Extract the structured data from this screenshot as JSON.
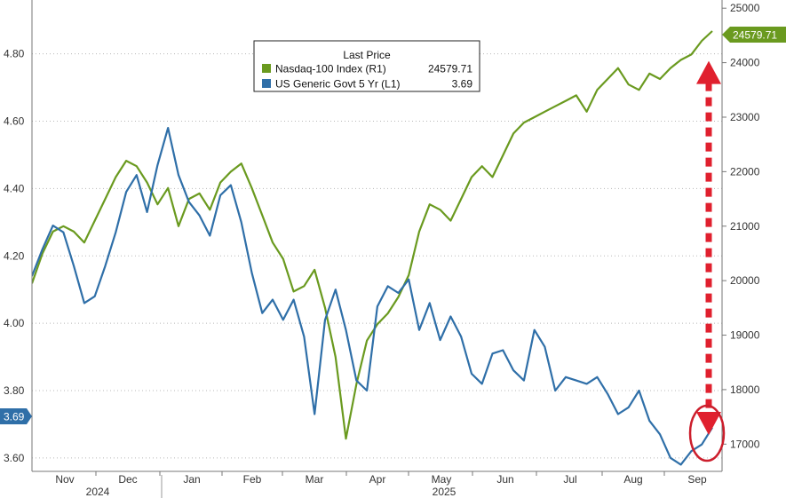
{
  "chart_data": {
    "type": "line",
    "legend": {
      "title": "Last Price",
      "placement": "top-center",
      "entries": [
        {
          "label": "Nasdaq-100 Index  (R1)",
          "value": "24579.71",
          "color": "#6a9a1f"
        },
        {
          "label": "US Generic Govt 5 Yr  (L1)",
          "value": "3.69",
          "color": "#2f6fa8"
        }
      ]
    },
    "x_ticks": [
      "Nov",
      "Dec",
      "Jan",
      "Feb",
      "Mar",
      "Apr",
      "May",
      "Jun",
      "Jul",
      "Aug",
      "Sep"
    ],
    "year_labels": [
      "2024",
      "2025"
    ],
    "left_axis": {
      "ticks": [
        "4.80",
        "4.60",
        "4.40",
        "4.20",
        "4.00",
        "3.80",
        "3.60"
      ],
      "range": [
        3.56,
        4.96
      ]
    },
    "right_axis": {
      "ticks": [
        "25000",
        "24000",
        "23000",
        "22000",
        "21000",
        "20000",
        "19000",
        "18000",
        "17000"
      ],
      "range": [
        16500,
        25150
      ]
    },
    "last_value_tags": {
      "left": "3.69",
      "right": "24579.71"
    },
    "series": [
      {
        "name": "Nasdaq-100 Index",
        "axis": "right",
        "color": "#6a9a1f",
        "x": [
          0,
          5,
          10,
          15,
          20,
          25,
          30,
          35,
          40,
          45,
          50,
          55,
          60,
          65,
          70,
          75,
          80,
          85,
          90,
          95,
          100,
          105,
          110,
          115,
          120,
          125,
          130,
          135,
          140,
          145,
          150,
          155,
          160,
          165,
          170,
          175,
          180,
          185,
          190,
          195,
          200,
          205,
          210,
          215,
          220,
          225,
          230,
          235,
          240,
          245,
          250,
          255,
          260,
          265,
          270,
          275,
          280,
          285,
          290,
          295,
          300,
          305,
          310,
          315,
          320,
          325
        ],
        "values": [
          19950,
          20500,
          20900,
          21000,
          20900,
          20700,
          21100,
          21500,
          21900,
          22200,
          22100,
          21800,
          21400,
          21700,
          21000,
          21500,
          21600,
          21300,
          21800,
          22000,
          22150,
          21700,
          21200,
          20700,
          20400,
          19800,
          19900,
          20200,
          19500,
          18600,
          17100,
          18100,
          18900,
          19200,
          19400,
          19700,
          20100,
          20900,
          21400,
          21300,
          21100,
          21500,
          21900,
          22100,
          21900,
          22300,
          22700,
          22900,
          23000,
          23100,
          23200,
          23300,
          23400,
          23100,
          23500,
          23700,
          23900,
          23600,
          23500,
          23800,
          23700,
          23900,
          24050,
          24150,
          24400,
          24580
        ]
      },
      {
        "name": "US Generic Govt 5 Yr",
        "axis": "left",
        "color": "#2f6fa8",
        "x": [
          0,
          5,
          10,
          15,
          20,
          25,
          30,
          35,
          40,
          45,
          50,
          55,
          60,
          65,
          70,
          75,
          80,
          85,
          90,
          95,
          100,
          105,
          110,
          115,
          120,
          125,
          130,
          135,
          140,
          145,
          150,
          155,
          160,
          165,
          170,
          175,
          180,
          185,
          190,
          195,
          200,
          205,
          210,
          215,
          220,
          225,
          230,
          235,
          240,
          245,
          250,
          255,
          260,
          265,
          270,
          275,
          280,
          285,
          290,
          295,
          300,
          305,
          310,
          315,
          320,
          325
        ],
        "values": [
          4.14,
          4.22,
          4.29,
          4.27,
          4.17,
          4.06,
          4.08,
          4.17,
          4.27,
          4.39,
          4.44,
          4.33,
          4.47,
          4.58,
          4.44,
          4.36,
          4.32,
          4.26,
          4.38,
          4.41,
          4.3,
          4.15,
          4.03,
          4.07,
          4.01,
          4.07,
          3.96,
          3.73,
          4.01,
          4.1,
          3.98,
          3.83,
          3.8,
          4.05,
          4.11,
          4.09,
          4.13,
          3.98,
          4.06,
          3.95,
          4.02,
          3.96,
          3.85,
          3.82,
          3.91,
          3.92,
          3.86,
          3.83,
          3.98,
          3.93,
          3.8,
          3.84,
          3.83,
          3.82,
          3.84,
          3.79,
          3.73,
          3.75,
          3.8,
          3.71,
          3.67,
          3.6,
          3.58,
          3.62,
          3.64,
          3.69
        ]
      }
    ],
    "annotations": {
      "arrow": {
        "color": "#e0202e",
        "from_value": 17200,
        "to_value": 24000
      },
      "circle": {
        "color": "#cc1e2c",
        "around": "last US Generic Govt 5 Yr value"
      }
    }
  }
}
